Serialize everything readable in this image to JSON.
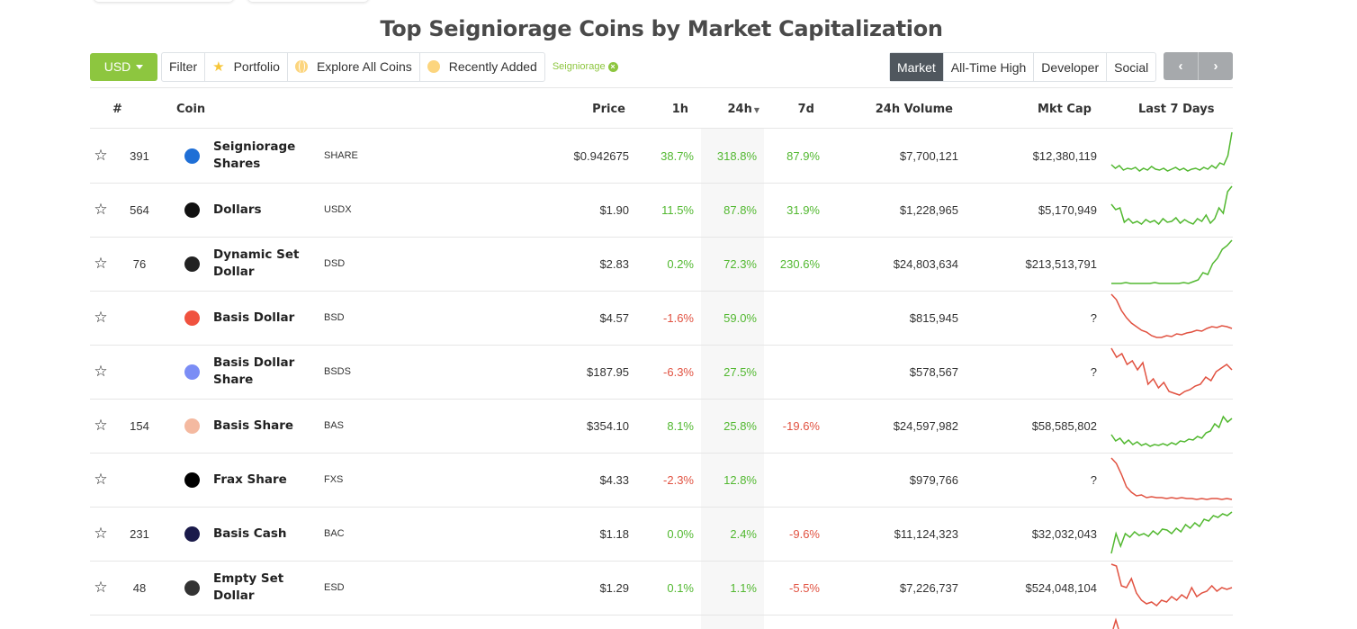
{
  "page_title": "Top Seigniorage Coins by Market Capitalization",
  "toolbar": {
    "currency": "USD",
    "filter": "Filter",
    "portfolio": "Portfolio",
    "explore": "Explore All Coins",
    "recently_added": "Recently Added",
    "tag": "Seigniorage"
  },
  "view_tabs": [
    "Market",
    "All-Time High",
    "Developer",
    "Social"
  ],
  "active_view": "Market",
  "pager": {
    "prev": "‹",
    "next": "›"
  },
  "columns": [
    "#",
    "Coin",
    "Price",
    "1h",
    "24h",
    "7d",
    "24h Volume",
    "Mkt Cap",
    "Last 7 Days"
  ],
  "colors": {
    "accent": "#8dc63f",
    "positive": "#52b830",
    "negative": "#e15241"
  },
  "rows": [
    {
      "rank": "391",
      "name": "Seigniorage Shares",
      "symbol": "SHARE",
      "price": "$0.942675",
      "h1": "38.7%",
      "h24": "318.8%",
      "d7": "87.9%",
      "volume": "$7,700,121",
      "mcap": "$12,380,119",
      "logo_color": "#1f6fd6",
      "trend": "up"
    },
    {
      "rank": "564",
      "name": "Dollars",
      "symbol": "USDX",
      "price": "$1.90",
      "h1": "11.5%",
      "h24": "87.8%",
      "d7": "31.9%",
      "volume": "$1,228,965",
      "mcap": "$5,170,949",
      "logo_color": "#111111",
      "trend": "up"
    },
    {
      "rank": "76",
      "name": "Dynamic Set Dollar",
      "symbol": "DSD",
      "price": "$2.83",
      "h1": "0.2%",
      "h24": "72.3%",
      "d7": "230.6%",
      "volume": "$24,803,634",
      "mcap": "$213,513,791",
      "logo_color": "#222222",
      "trend": "up"
    },
    {
      "rank": "",
      "name": "Basis Dollar",
      "symbol": "BSD",
      "price": "$4.57",
      "h1": "-1.6%",
      "h24": "59.0%",
      "d7": "",
      "volume": "$815,945",
      "mcap": "?",
      "logo_color": "#f0523f",
      "trend": "down"
    },
    {
      "rank": "",
      "name": "Basis Dollar Share",
      "symbol": "BSDS",
      "price": "$187.95",
      "h1": "-6.3%",
      "h24": "27.5%",
      "d7": "",
      "volume": "$578,567",
      "mcap": "?",
      "logo_color": "#7b8df5",
      "trend": "down"
    },
    {
      "rank": "154",
      "name": "Basis Share",
      "symbol": "BAS",
      "price": "$354.10",
      "h1": "8.1%",
      "h24": "25.8%",
      "d7": "-19.6%",
      "volume": "$24,597,982",
      "mcap": "$58,585,802",
      "logo_color": "#f4b9a0",
      "trend": "up"
    },
    {
      "rank": "",
      "name": "Frax Share",
      "symbol": "FXS",
      "price": "$4.33",
      "h1": "-2.3%",
      "h24": "12.8%",
      "d7": "",
      "volume": "$979,766",
      "mcap": "?",
      "logo_color": "#000000",
      "trend": "down"
    },
    {
      "rank": "231",
      "name": "Basis Cash",
      "symbol": "BAC",
      "price": "$1.18",
      "h1": "0.0%",
      "h24": "2.4%",
      "d7": "-9.6%",
      "volume": "$11,124,323",
      "mcap": "$32,032,043",
      "logo_color": "#1a1a4a",
      "trend": "up"
    },
    {
      "rank": "48",
      "name": "Empty Set Dollar",
      "symbol": "ESD",
      "price": "$1.29",
      "h1": "0.1%",
      "h24": "1.1%",
      "d7": "-5.5%",
      "volume": "$7,226,737",
      "mcap": "$524,048,104",
      "logo_color": "#333333",
      "trend": "down"
    }
  ]
}
